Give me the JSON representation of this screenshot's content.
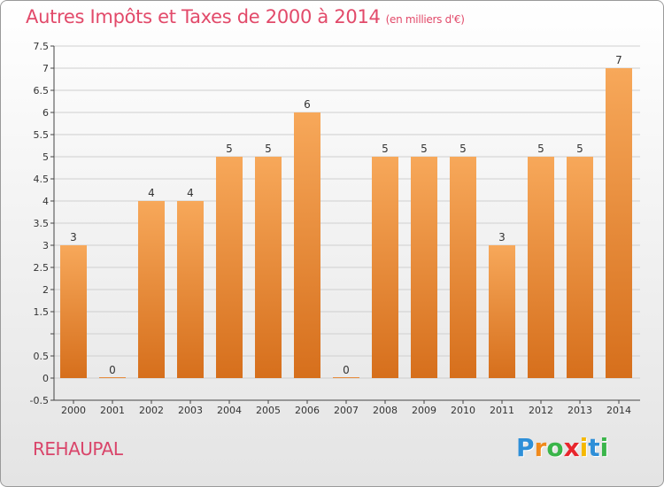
{
  "header": {
    "title": "Autres Impôts et Taxes de 2000 à 2014",
    "unit": "(en milliers d'€)"
  },
  "footer": {
    "commune": "REHAUPAL",
    "logo_letters": [
      {
        "char": "P",
        "color": "#2e8fd8"
      },
      {
        "char": "r",
        "color": "#f08a1c"
      },
      {
        "char": "o",
        "color": "#3ab54a"
      },
      {
        "char": "x",
        "color": "#e8262d"
      },
      {
        "char": "i",
        "color": "#f5b800"
      },
      {
        "char": "t",
        "color": "#2e8fd8"
      },
      {
        "char": "i",
        "color": "#3ab54a"
      }
    ]
  },
  "colors": {
    "bar_light": "#f7a85a",
    "bar_dark": "#d66f1c",
    "grid": "#cfcfcf",
    "axis_text": "#333333"
  },
  "chart_data": {
    "type": "bar",
    "title": "Autres Impôts et Taxes de 2000 à 2014",
    "subtitle": "(en milliers d'€)",
    "categories": [
      "2000",
      "2001",
      "2002",
      "2003",
      "2004",
      "2005",
      "2006",
      "2007",
      "2008",
      "2009",
      "2010",
      "2011",
      "2012",
      "2013",
      "2014"
    ],
    "values": [
      3,
      0,
      4,
      4,
      5,
      5,
      6,
      0,
      5,
      5,
      5,
      3,
      5,
      5,
      7
    ],
    "data_labels": [
      "3",
      "0",
      "4",
      "4",
      "5",
      "5",
      "6",
      "0",
      "5",
      "5",
      "5",
      "3",
      "5",
      "5",
      "7"
    ],
    "ylim": [
      -0.5,
      7.5
    ],
    "yticks": [
      -0.5,
      0,
      0.5,
      1,
      1.5,
      2,
      2.5,
      3,
      3.5,
      4,
      4.5,
      5,
      5.5,
      6,
      6.5,
      7,
      7.5
    ],
    "ytick_labels": [
      "-0.5",
      "0",
      "0.5",
      "",
      "1.5",
      "2",
      "2.5",
      "3",
      "3.5",
      "4",
      "4.5",
      "5",
      "5.5",
      "6",
      "6.5",
      "7",
      "7.5"
    ],
    "grid": true,
    "xlabel": "",
    "ylabel": ""
  }
}
